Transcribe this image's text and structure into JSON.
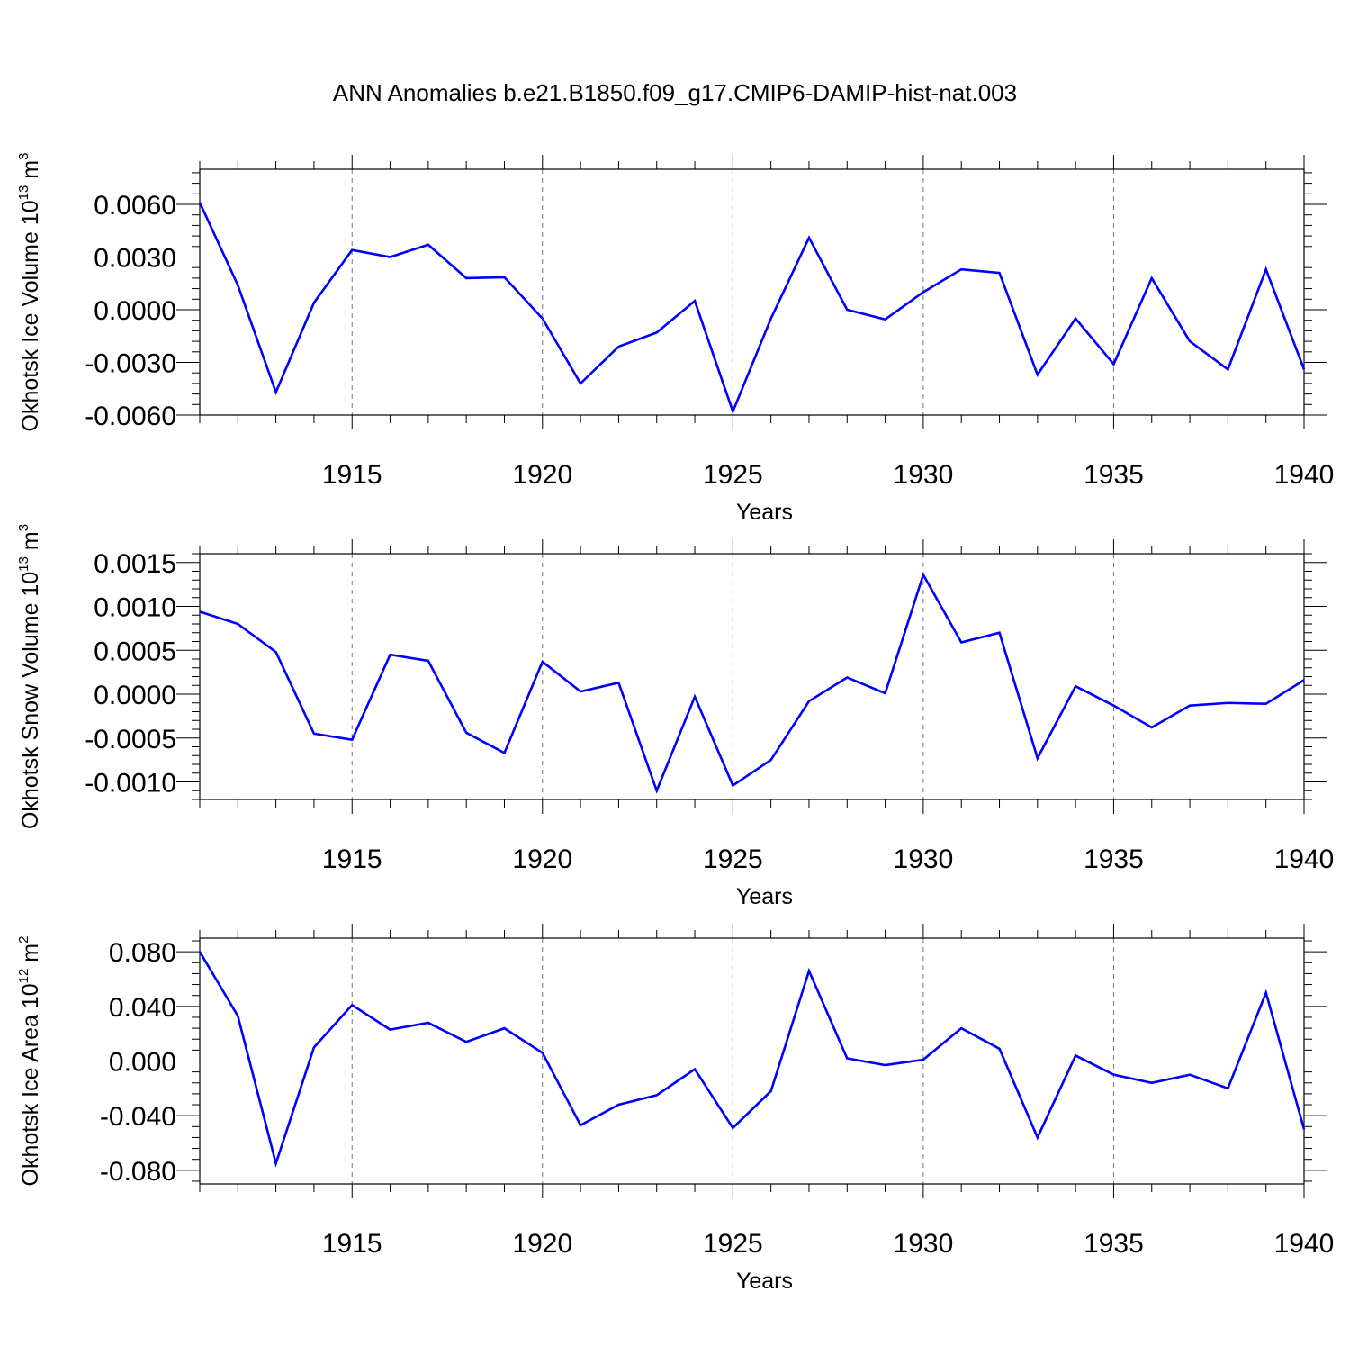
{
  "figure_title": "ANN Anomalies b.e21.B1850.f09_g17.CMIP6-DAMIP-hist-nat.003",
  "colors": {
    "line": "#0000ff",
    "axes": "#000000",
    "grid": "#777777"
  },
  "chart_data": [
    {
      "type": "line",
      "title": "",
      "ylabel": "Okhotsk Ice Volume",
      "ylabel_unit": {
        "base": "10",
        "exp": "13",
        "unit": "m",
        "unit_exp": "3"
      },
      "xlabel": "Years",
      "xlim": [
        1911,
        1940
      ],
      "ylim": [
        -0.006,
        0.008
      ],
      "xticks": [
        1915,
        1920,
        1925,
        1930,
        1935,
        1940
      ],
      "xtick_labels": [
        "1915",
        "1920",
        "1925",
        "1930",
        "1935",
        "1940"
      ],
      "yticks": [
        0.006,
        0.003,
        0.0,
        -0.003,
        -0.006
      ],
      "ytick_labels": [
        "0.0060",
        "0.0030",
        "0.0000",
        "-0.0030",
        "-0.0060"
      ],
      "grid": "vertical dashed at major x ticks",
      "x": [
        1911,
        1912,
        1913,
        1914,
        1915,
        1916,
        1917,
        1918,
        1919,
        1920,
        1921,
        1922,
        1923,
        1924,
        1925,
        1926,
        1927,
        1928,
        1929,
        1930,
        1931,
        1932,
        1933,
        1934,
        1935,
        1936,
        1937,
        1938,
        1939,
        1940
      ],
      "series": [
        {
          "name": "Ice Volume",
          "values": [
            0.0061,
            0.0014,
            -0.0047,
            0.0004,
            0.0034,
            0.003,
            0.0037,
            0.0018,
            0.00185,
            -0.0005,
            -0.0042,
            -0.0021,
            -0.0013,
            0.0005,
            -0.0058,
            -0.0005,
            0.0041,
            0.0,
            -0.00055,
            0.001,
            0.0023,
            0.0021,
            -0.0037,
            -0.0005,
            -0.0031,
            0.0018,
            -0.0018,
            -0.0034,
            0.0023,
            -0.0034
          ]
        }
      ]
    },
    {
      "type": "line",
      "title": "",
      "ylabel": "Okhotsk Snow Volume",
      "ylabel_unit": {
        "base": "10",
        "exp": "13",
        "unit": "m",
        "unit_exp": "3"
      },
      "xlabel": "Years",
      "xlim": [
        1911,
        1940
      ],
      "ylim": [
        -0.0012,
        0.0016
      ],
      "xticks": [
        1915,
        1920,
        1925,
        1930,
        1935,
        1940
      ],
      "xtick_labels": [
        "1915",
        "1920",
        "1925",
        "1930",
        "1935",
        "1940"
      ],
      "yticks": [
        0.0015,
        0.001,
        0.0005,
        0.0,
        -0.0005,
        -0.001
      ],
      "ytick_labels": [
        "0.0015",
        "0.0010",
        "0.0005",
        "0.0000",
        "-0.0005",
        "-0.0010"
      ],
      "grid": "vertical dashed at major x ticks",
      "x": [
        1911,
        1912,
        1913,
        1914,
        1915,
        1916,
        1917,
        1918,
        1919,
        1920,
        1921,
        1922,
        1923,
        1924,
        1925,
        1926,
        1927,
        1928,
        1929,
        1930,
        1931,
        1932,
        1933,
        1934,
        1935,
        1936,
        1937,
        1938,
        1939,
        1940
      ],
      "series": [
        {
          "name": "Snow Volume",
          "values": [
            0.00094,
            0.0008,
            0.00048,
            -0.00045,
            -0.00052,
            0.00045,
            0.00038,
            -0.00044,
            -0.00067,
            0.00037,
            3e-05,
            0.00013,
            -0.0011,
            -3e-05,
            -0.00104,
            -0.00075,
            -8e-05,
            0.00019,
            1e-05,
            0.00136,
            0.00059,
            0.0007,
            -0.00073,
            9e-05,
            -0.00013,
            -0.00038,
            -0.00013,
            -0.0001,
            -0.00011,
            0.00016
          ]
        }
      ]
    },
    {
      "type": "line",
      "title": "",
      "ylabel": "Okhotsk Ice Area",
      "ylabel_unit": {
        "base": "10",
        "exp": "12",
        "unit": "m",
        "unit_exp": "2"
      },
      "xlabel": "Years",
      "xlim": [
        1911,
        1940
      ],
      "ylim": [
        -0.09,
        0.09
      ],
      "xticks": [
        1915,
        1920,
        1925,
        1930,
        1935,
        1940
      ],
      "xtick_labels": [
        "1915",
        "1920",
        "1925",
        "1930",
        "1935",
        "1940"
      ],
      "yticks": [
        0.08,
        0.04,
        0.0,
        -0.04,
        -0.08
      ],
      "ytick_labels": [
        "0.080",
        "0.040",
        "0.000",
        "-0.040",
        "-0.080"
      ],
      "grid": "vertical dashed at major x ticks",
      "x": [
        1911,
        1912,
        1913,
        1914,
        1915,
        1916,
        1917,
        1918,
        1919,
        1920,
        1921,
        1922,
        1923,
        1924,
        1925,
        1926,
        1927,
        1928,
        1929,
        1930,
        1931,
        1932,
        1933,
        1934,
        1935,
        1936,
        1937,
        1938,
        1939,
        1940
      ],
      "series": [
        {
          "name": "Ice Area",
          "values": [
            0.08,
            0.033,
            -0.075,
            0.01,
            0.041,
            0.023,
            0.028,
            0.014,
            0.024,
            0.006,
            -0.047,
            -0.032,
            -0.025,
            -0.006,
            -0.049,
            -0.022,
            0.066,
            0.002,
            -0.003,
            0.001,
            0.024,
            0.009,
            -0.056,
            0.004,
            -0.01,
            -0.016,
            -0.01,
            -0.02,
            0.05,
            -0.05
          ]
        }
      ]
    }
  ]
}
